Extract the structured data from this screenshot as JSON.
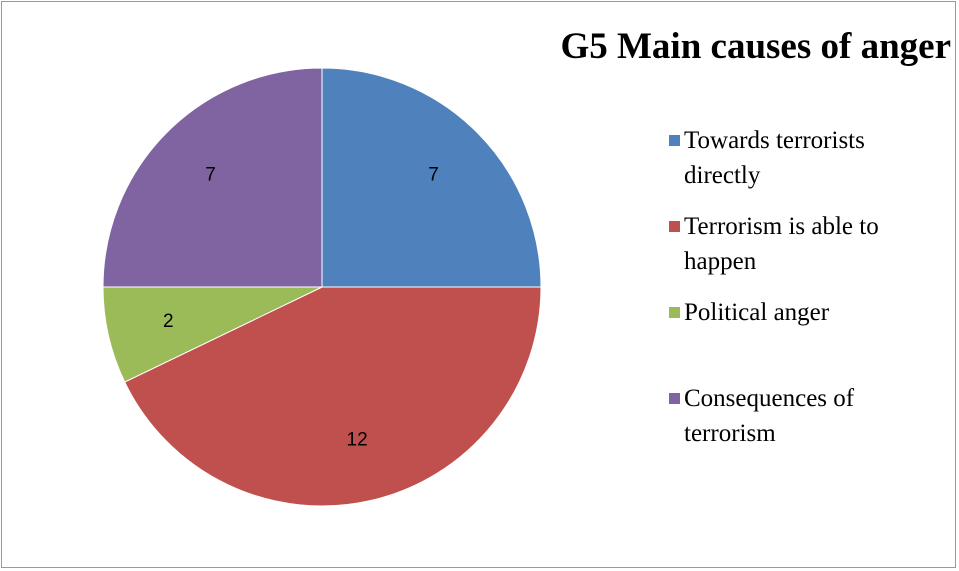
{
  "chart_data": {
    "type": "pie",
    "title": "G5 Main causes of anger",
    "categories": [
      "Towards terrorists directly",
      "Terrorism is able to happen",
      "Political anger",
      "Consequences of terrorism"
    ],
    "values": [
      7,
      12,
      2,
      7
    ],
    "colors": [
      "#4f81bd",
      "#c0504d",
      "#9bbb59",
      "#8064a2"
    ],
    "data_labels": [
      "7",
      "12",
      "2",
      "7"
    ],
    "legend_position": "right",
    "legend": [
      {
        "line1": "Towards terrorists",
        "line2": "directly"
      },
      {
        "line1": "Terrorism is able to",
        "line2": "happen"
      },
      {
        "line1": "Political anger",
        "line2": ""
      },
      {
        "line1": "Consequences of",
        "line2": "terrorism"
      }
    ]
  }
}
